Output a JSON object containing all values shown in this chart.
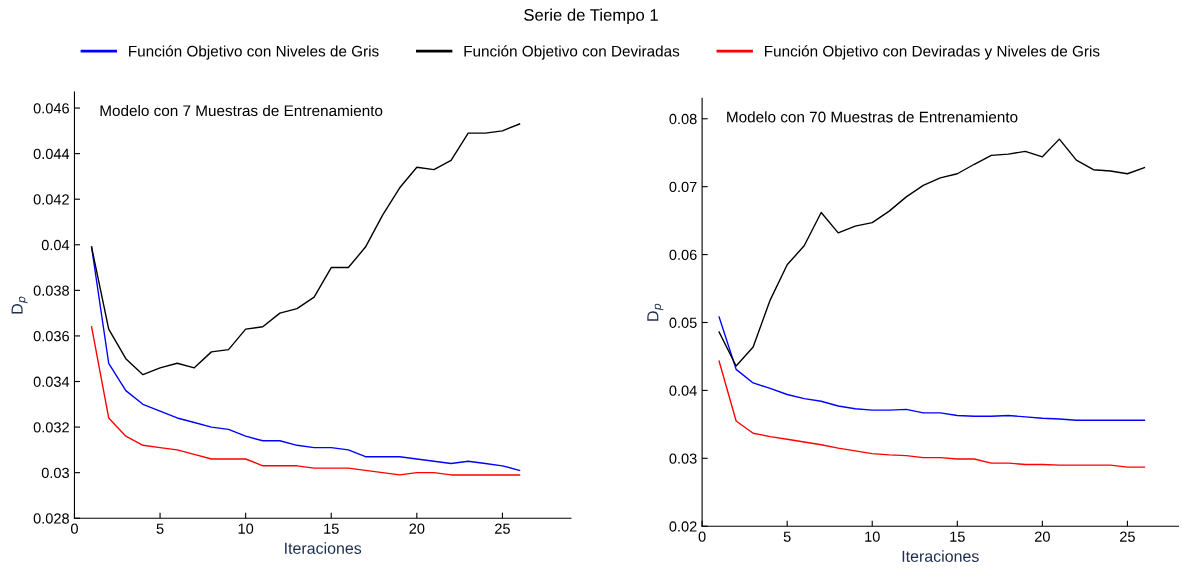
{
  "chart_data": [
    {
      "type": "line",
      "title": "Serie de Tiempo 1",
      "legend": "top",
      "xlabel": "Iteraciones",
      "ylabel": "D$_{p}$",
      "annotations": [
        "Modelo con 7 Muestras de Entrenamiento"
      ],
      "grid": false,
      "x": [
        1,
        2,
        3,
        4,
        5,
        6,
        7,
        8,
        9,
        10,
        11,
        12,
        13,
        14,
        15,
        16,
        17,
        18,
        19,
        20,
        21,
        22,
        23,
        24,
        25,
        26
      ],
      "xlim": [
        0,
        29
      ],
      "xticks": [
        0,
        5,
        10,
        15,
        20,
        25
      ],
      "ylim": [
        0.028,
        0.0467
      ],
      "yticks": [
        0.028,
        0.03,
        0.032,
        0.034,
        0.036,
        0.038,
        0.04,
        0.042,
        0.044,
        0.046
      ],
      "series": [
        {
          "name": "Función Objetivo con Niveles de Gris",
          "color": "#0000ff",
          "values": [
            0.0399,
            0.0348,
            0.0336,
            0.033,
            0.0327,
            0.0324,
            0.0322,
            0.032,
            0.0319,
            0.0316,
            0.0314,
            0.0314,
            0.0312,
            0.0311,
            0.0311,
            0.031,
            0.0307,
            0.0307,
            0.0307,
            0.0306,
            0.0305,
            0.0304,
            0.0305,
            0.0304,
            0.0303,
            0.0301
          ]
        },
        {
          "name": "Función Objetivo con Deviradas",
          "color": "#000000",
          "values": [
            0.0399,
            0.0363,
            0.035,
            0.0343,
            0.0346,
            0.0348,
            0.0346,
            0.0353,
            0.0354,
            0.0363,
            0.0364,
            0.037,
            0.0372,
            0.0377,
            0.039,
            0.039,
            0.0399,
            0.0413,
            0.0425,
            0.0434,
            0.0433,
            0.0437,
            0.0449,
            0.0449,
            0.045,
            0.0453
          ]
        },
        {
          "name": "Función Objetivo con Deviradas y Niveles de Gris",
          "color": "#ff0000",
          "values": [
            0.0364,
            0.0324,
            0.0316,
            0.0312,
            0.0311,
            0.031,
            0.0308,
            0.0306,
            0.0306,
            0.0306,
            0.0303,
            0.0303,
            0.0303,
            0.0302,
            0.0302,
            0.0302,
            0.0301,
            0.03,
            0.0299,
            0.03,
            0.03,
            0.0299,
            0.0299,
            0.0299,
            0.0299,
            0.0299
          ]
        }
      ]
    },
    {
      "type": "line",
      "xlabel": "Iteraciones",
      "ylabel": "D$_{p}$",
      "annotations": [
        "Modelo con 70 Muestras de Entrenamiento"
      ],
      "grid": false,
      "x": [
        1,
        2,
        3,
        4,
        5,
        6,
        7,
        8,
        9,
        10,
        11,
        12,
        13,
        14,
        15,
        16,
        17,
        18,
        19,
        20,
        21,
        22,
        23,
        24,
        25,
        26
      ],
      "xlim": [
        0,
        28
      ],
      "xticks": [
        0,
        5,
        10,
        15,
        20,
        25
      ],
      "ylim": [
        0.02,
        0.083
      ],
      "yticks": [
        0.02,
        0.03,
        0.04,
        0.05,
        0.06,
        0.07,
        0.08
      ],
      "series": [
        {
          "color": "#0000ff",
          "values": [
            0.0508,
            0.0431,
            0.0411,
            0.0403,
            0.0394,
            0.0388,
            0.0384,
            0.0377,
            0.0373,
            0.0371,
            0.0371,
            0.0372,
            0.0367,
            0.0367,
            0.0363,
            0.0362,
            0.0362,
            0.0363,
            0.0361,
            0.0359,
            0.0358,
            0.0356,
            0.0356,
            0.0356,
            0.0356,
            0.0356
          ]
        },
        {
          "color": "#000000",
          "values": [
            0.0486,
            0.0436,
            0.0464,
            0.0533,
            0.0585,
            0.0613,
            0.0662,
            0.0632,
            0.0642,
            0.0647,
            0.0664,
            0.0685,
            0.0702,
            0.0713,
            0.0719,
            0.0733,
            0.0746,
            0.0748,
            0.0752,
            0.0744,
            0.077,
            0.0739,
            0.0725,
            0.0723,
            0.0719,
            0.0728
          ]
        },
        {
          "color": "#ff0000",
          "values": [
            0.0443,
            0.0355,
            0.0337,
            0.0332,
            0.0328,
            0.0324,
            0.032,
            0.0315,
            0.0311,
            0.0307,
            0.0305,
            0.0304,
            0.0301,
            0.0301,
            0.0299,
            0.0299,
            0.0293,
            0.0293,
            0.0291,
            0.0291,
            0.029,
            0.029,
            0.029,
            0.029,
            0.0287,
            0.0287
          ]
        }
      ]
    }
  ]
}
